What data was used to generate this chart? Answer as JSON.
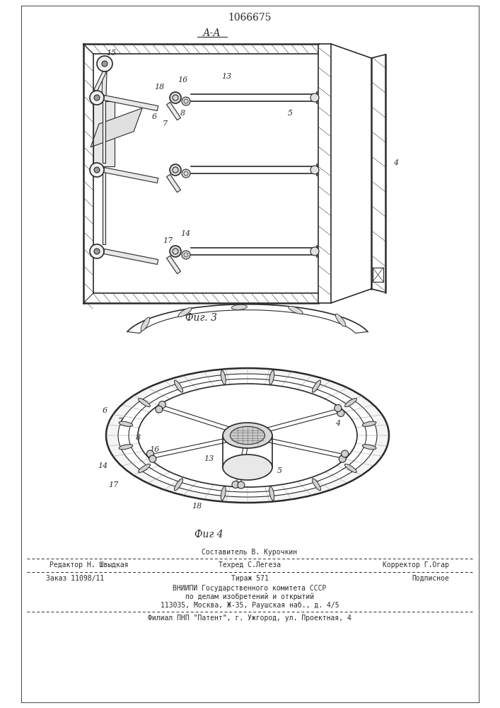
{
  "patent_number": "1066675",
  "section_label": "А-А",
  "fig3_label": "Фиг. 3",
  "fig4_label": "Фиг 4",
  "footer_sestavitel": "Составитель В. Курочкин",
  "footer_editor": "Редактор Н. Швыдкая",
  "footer_techred": "Техред С.Легеза",
  "footer_korrektor": "Корректор Г.Огар",
  "footer_zakaz": "Заказ 11098/11",
  "footer_tirazh": "Тираж 571",
  "footer_podpisnoe": "Подписное",
  "footer_vniiipi": "ВНИИПИ Государственного комитета СССР",
  "footer_po_delam": "по делам изобретений и открытий",
  "footer_address": "113035, Москва, Ж-35, Раушская наб., д. 4/5",
  "footer_filial": "Филиал ПНП \"Патент\", г. Ужгород, ул. Проектная, 4",
  "bg_color": "#ffffff",
  "line_color": "#2a2a2a"
}
